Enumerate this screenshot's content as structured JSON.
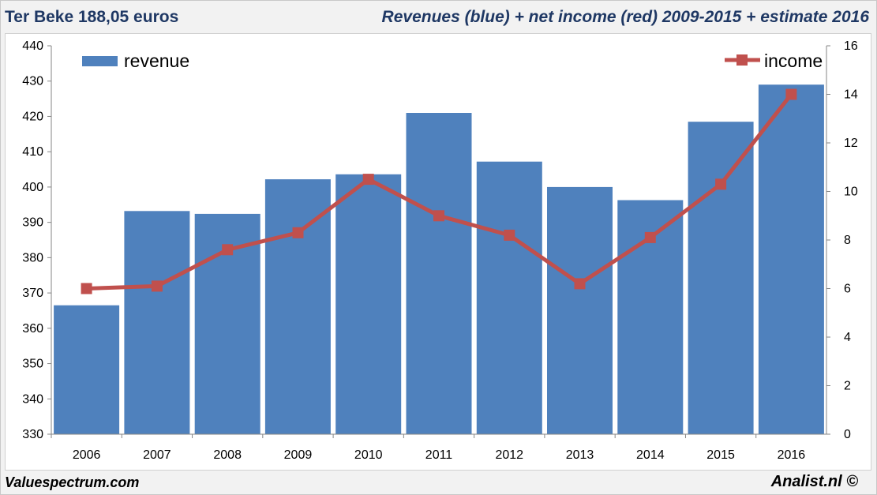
{
  "header": {
    "left_title": "Ter Beke 188,05 euros",
    "right_title": "Revenues (blue) + net income (red) 2009-2015 + estimate 2016"
  },
  "footer": {
    "left": "Valuespectrum.com",
    "right": "Analist.nl ©"
  },
  "colors": {
    "revenue_bar": "#4f81bd",
    "income_line": "#c0504d",
    "title_text": "#1f3864"
  },
  "chart_data": {
    "type": "bar",
    "categories": [
      "2006",
      "2007",
      "2008",
      "2009",
      "2010",
      "2011",
      "2012",
      "2013",
      "2014",
      "2015",
      "2016"
    ],
    "series": [
      {
        "name": "revenue",
        "type": "bar",
        "axis": "left",
        "values": [
          366.5,
          393.2,
          392.4,
          402.2,
          403.6,
          421.0,
          407.2,
          400.0,
          396.3,
          418.5,
          429.0
        ]
      },
      {
        "name": "income",
        "type": "line",
        "axis": "right",
        "values": [
          6.0,
          6.1,
          7.6,
          8.3,
          10.5,
          9.0,
          8.2,
          6.2,
          8.1,
          10.3,
          14.0
        ]
      }
    ],
    "y_left": {
      "min": 330,
      "max": 440,
      "ticks": [
        "330",
        "340",
        "350",
        "360",
        "370",
        "380",
        "390",
        "400",
        "410",
        "420",
        "430",
        "440"
      ]
    },
    "y_right": {
      "min": 0,
      "max": 16,
      "ticks": [
        "0",
        "2",
        "4",
        "6",
        "8",
        "10",
        "12",
        "14",
        "16"
      ]
    },
    "legend": {
      "revenue_position": "top-left",
      "income_position": "top-right"
    },
    "grid": false
  }
}
